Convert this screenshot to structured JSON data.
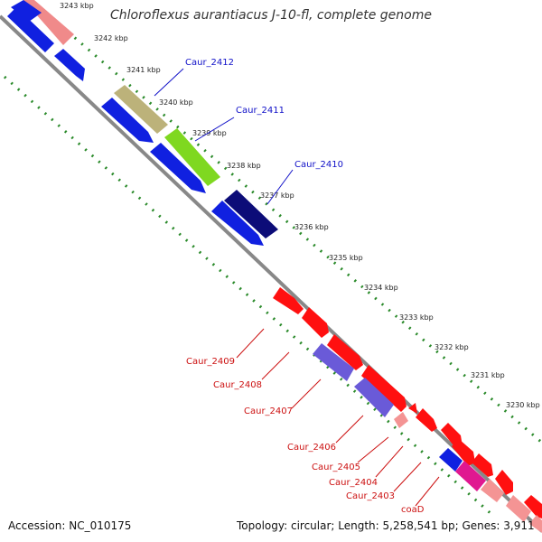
{
  "title": "Chloroflexus aurantiacus J-10-fl, complete genome",
  "footer": {
    "accession": "Accession: NC_010175",
    "summary": "Topology: circular; Length: 5,258,541 bp; Genes: 3,911"
  },
  "colors": {
    "forward_label": "#1010c8",
    "reverse_label": "#cc1010",
    "backbone": "#888888",
    "tick_dots": "#2a8a2a"
  },
  "tick_labels": [
    "3243 kbp",
    "3242 kbp",
    "3241 kbp",
    "3240 kbp",
    "3239 kbp",
    "3238 kbp",
    "3237 kbp",
    "3236 kbp",
    "3235 kbp",
    "3234 kbp",
    "3233 kbp",
    "3232 kbp",
    "3231 kbp",
    "3230 kbp"
  ],
  "gene_labels": {
    "forward": [
      "Caur_2412",
      "Caur_2411",
      "Caur_2410"
    ],
    "reverse": [
      "Caur_2409",
      "Caur_2408",
      "Caur_2407",
      "Caur_2406",
      "Caur_2405",
      "Caur_2404",
      "Caur_2403",
      "coaD"
    ]
  }
}
